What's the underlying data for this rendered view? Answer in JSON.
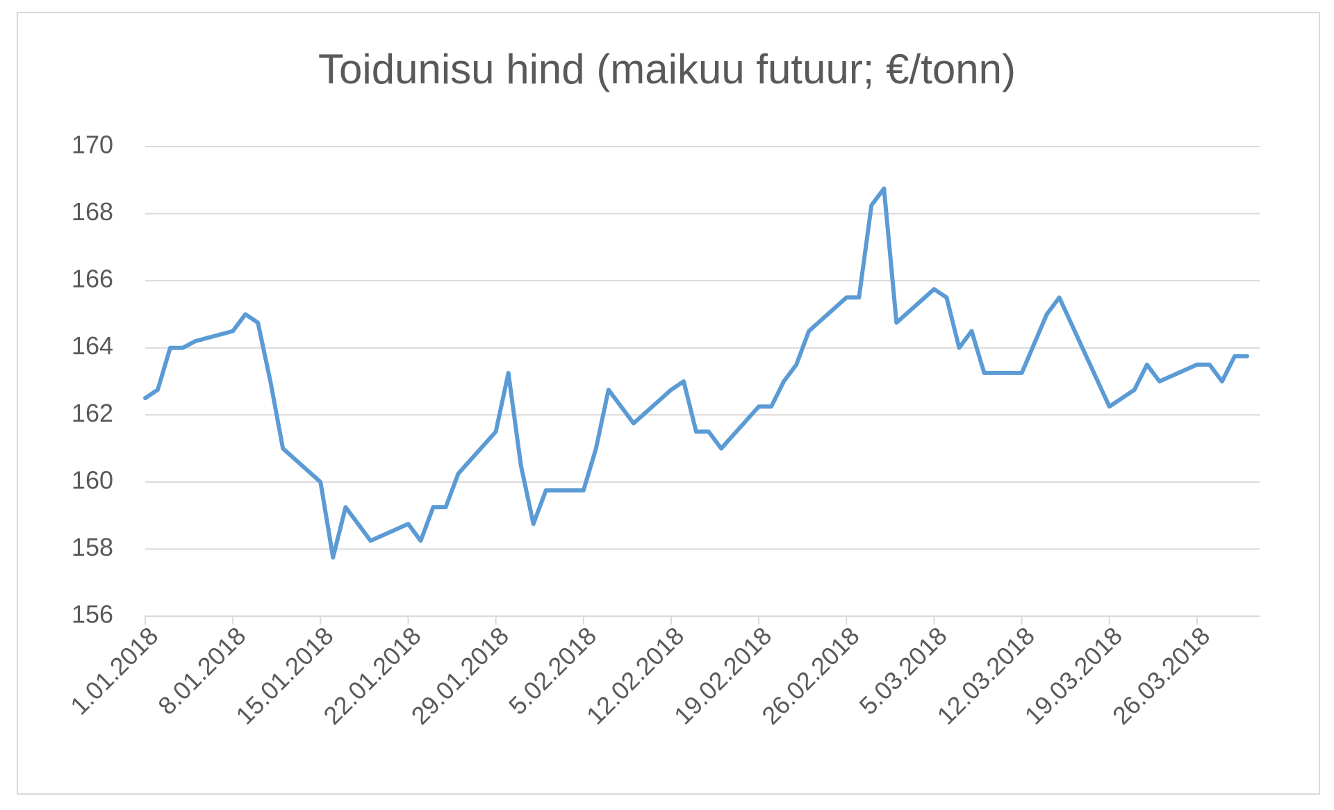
{
  "chart_data": {
    "type": "line",
    "title": "Toidunisu hind (maikuu futuur; €/tonn)",
    "x": [
      "1.01.2018",
      "2.01.2018",
      "3.01.2018",
      "4.01.2018",
      "5.01.2018",
      "8.01.2018",
      "9.01.2018",
      "10.01.2018",
      "11.01.2018",
      "12.01.2018",
      "15.01.2018",
      "16.01.2018",
      "17.01.2018",
      "18.01.2018",
      "19.01.2018",
      "22.01.2018",
      "23.01.2018",
      "24.01.2018",
      "25.01.2018",
      "26.01.2018",
      "29.01.2018",
      "30.01.2018",
      "31.01.2018",
      "1.02.2018",
      "2.02.2018",
      "5.02.2018",
      "6.02.2018",
      "7.02.2018",
      "8.02.2018",
      "9.02.2018",
      "12.02.2018",
      "13.02.2018",
      "14.02.2018",
      "15.02.2018",
      "16.02.2018",
      "19.02.2018",
      "20.02.2018",
      "21.02.2018",
      "22.02.2018",
      "23.02.2018",
      "26.02.2018",
      "27.02.2018",
      "28.02.2018",
      "1.03.2018",
      "2.03.2018",
      "5.03.2018",
      "6.03.2018",
      "7.03.2018",
      "8.03.2018",
      "9.03.2018",
      "12.03.2018",
      "14.03.2018",
      "15.03.2018",
      "19.03.2018",
      "20.03.2018",
      "21.03.2018",
      "22.03.2018",
      "23.03.2018",
      "26.03.2018",
      "27.03.2018",
      "28.03.2018",
      "29.03.2018",
      "30.03.2018"
    ],
    "values": [
      162.5,
      162.75,
      164.0,
      164.0,
      164.2,
      164.5,
      165.0,
      164.75,
      163.0,
      161.0,
      160.0,
      157.75,
      159.25,
      158.75,
      158.25,
      158.75,
      158.25,
      159.25,
      159.25,
      160.25,
      161.5,
      163.25,
      160.5,
      158.75,
      159.75,
      159.75,
      161.0,
      162.75,
      162.25,
      161.75,
      162.75,
      163.0,
      161.5,
      161.5,
      161.0,
      162.25,
      162.25,
      163.0,
      163.5,
      164.5,
      165.5,
      165.5,
      168.25,
      168.75,
      164.75,
      165.75,
      165.5,
      164.0,
      164.5,
      163.25,
      163.25,
      165.0,
      165.5,
      162.25,
      162.5,
      162.75,
      163.5,
      163.0,
      163.5,
      163.5,
      163.0,
      163.75,
      163.75
    ],
    "color": "#5b9bd5",
    "xlim": [
      "1.01.2018",
      "31.03.2018"
    ],
    "xticks": [
      "1.01.2018",
      "8.01.2018",
      "15.01.2018",
      "22.01.2018",
      "29.01.2018",
      "5.02.2018",
      "12.02.2018",
      "19.02.2018",
      "26.02.2018",
      "5.03.2018",
      "12.03.2018",
      "19.03.2018",
      "26.03.2018"
    ],
    "ylim": [
      156,
      170
    ],
    "yticks": [
      156,
      158,
      160,
      162,
      164,
      166,
      168,
      170
    ],
    "grid": true
  }
}
